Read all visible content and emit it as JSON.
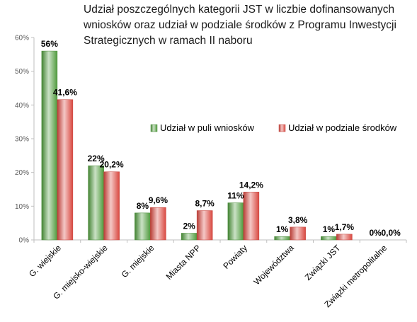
{
  "chart_data": {
    "type": "bar",
    "title": [
      "Udział poszczególnych kategorii JST w liczbie dofinansowanych",
      "wniosków oraz udział w podziale środków z Programu Inwestycji",
      "Strategicznych w ramach II naboru"
    ],
    "categories": [
      "G. wiejskie",
      "G. miejsko-wiejskie",
      "G. miejskie",
      "Miasta NPP",
      "Powiaty",
      "Województwa",
      "Związki JST",
      "Związki metropolitalne"
    ],
    "series": [
      {
        "name": "Udział w puli wniosków",
        "values": [
          56,
          22,
          8,
          2,
          11,
          1,
          1,
          0
        ],
        "labels": [
          "56%",
          "22%",
          "8%",
          "2%",
          "11%",
          "1%",
          "1%",
          "0%"
        ],
        "color": "#4f9a3c"
      },
      {
        "name": "Udział w podziale środków",
        "values": [
          41.6,
          20.2,
          9.6,
          8.7,
          14.2,
          3.8,
          1.7,
          0.0
        ],
        "labels": [
          "41,6%",
          "20,2%",
          "9,6%",
          "8,7%",
          "14,2%",
          "3,8%",
          "1,7%",
          "0,0%"
        ],
        "color": "#d94840"
      }
    ],
    "ylim": [
      0,
      60
    ],
    "yticks": [
      0,
      10,
      20,
      30,
      40,
      50,
      60
    ],
    "ytick_labels": [
      "0%",
      "10%",
      "20%",
      "30%",
      "40%",
      "50%",
      "60%"
    ],
    "xlabel": "",
    "ylabel": "",
    "grid": false,
    "legend": "center-right"
  }
}
